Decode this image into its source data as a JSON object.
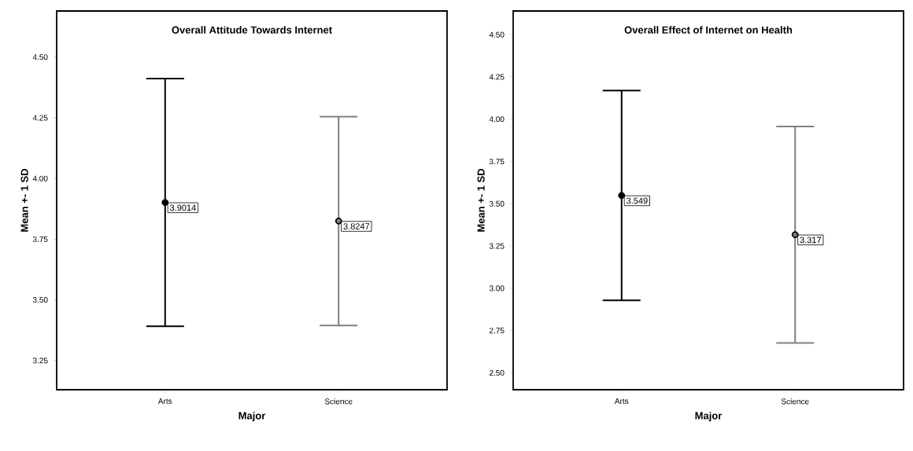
{
  "chart_data": [
    {
      "type": "scatter",
      "title": "Overall Attitude Towards Internet",
      "xlabel": "Major",
      "ylabel": "Mean +- 1 SD",
      "categories": [
        "Arts",
        "Science"
      ],
      "values": [
        3.9014,
        3.8247
      ],
      "errors": [
        0.51,
        0.43
      ],
      "colors": [
        "#000000",
        "#808080"
      ],
      "data_labels": true,
      "marker": "circle",
      "ylim": [
        3.13,
        4.69
      ],
      "yticks": [
        {
          "value": 3.25,
          "label": "3.25"
        },
        {
          "value": 3.5,
          "label": "3.50"
        },
        {
          "value": 3.75,
          "label": "3.75"
        },
        {
          "value": 4.0,
          "label": "4.00"
        },
        {
          "value": 4.25,
          "label": "4.25"
        },
        {
          "value": 4.5,
          "label": "4.50"
        }
      ]
    },
    {
      "type": "scatter",
      "title": "Overall Effect of Internet on Health",
      "xlabel": "Major",
      "ylabel": "Mean +- 1 SD",
      "categories": [
        "Arts",
        "Science"
      ],
      "values": [
        3.549,
        3.317
      ],
      "errors": [
        0.62,
        0.64
      ],
      "colors": [
        "#000000",
        "#808080"
      ],
      "data_labels": true,
      "marker": "circle",
      "ylim": [
        2.4,
        4.64
      ],
      "yticks": [
        {
          "value": 2.5,
          "label": "2.50"
        },
        {
          "value": 2.75,
          "label": "2.75"
        },
        {
          "value": 3.0,
          "label": "3.00"
        },
        {
          "value": 3.25,
          "label": "3.25"
        },
        {
          "value": 3.5,
          "label": "3.50"
        },
        {
          "value": 3.75,
          "label": "3.75"
        },
        {
          "value": 4.0,
          "label": "4.00"
        },
        {
          "value": 4.25,
          "label": "4.25"
        },
        {
          "value": 4.5,
          "label": "4.50"
        }
      ]
    }
  ]
}
